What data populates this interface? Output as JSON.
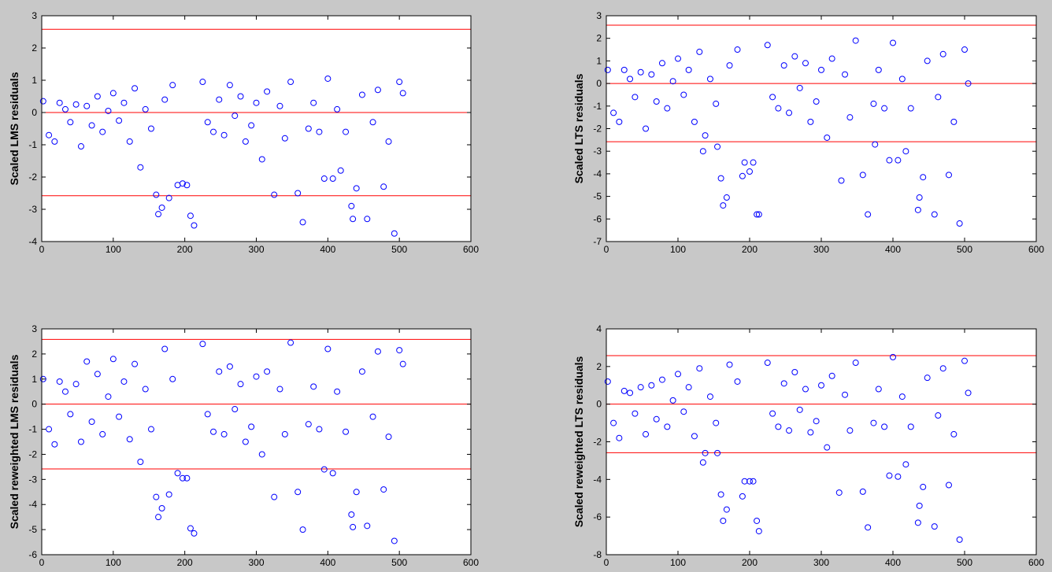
{
  "chart_data": [
    {
      "type": "scatter",
      "ylabel": "Scaled LMS residuals",
      "color": "#0000ff",
      "hlines": [
        -2.58,
        0,
        2.58
      ],
      "hline_color": "#ff0000",
      "xlim": [
        0,
        600
      ],
      "xticks": [
        0,
        100,
        200,
        300,
        400,
        500,
        600
      ],
      "ylim": [
        -4,
        3
      ],
      "yticks": [
        -4,
        -3,
        -2,
        -1,
        0,
        1,
        2,
        3
      ],
      "x": [
        2,
        10,
        18,
        25,
        33,
        40,
        48,
        55,
        63,
        70,
        78,
        85,
        93,
        100,
        108,
        115,
        123,
        130,
        138,
        145,
        153,
        172,
        183,
        225,
        232,
        240,
        248,
        255,
        263,
        270,
        278,
        285,
        293,
        300,
        308,
        315,
        333,
        340,
        348,
        373,
        380,
        388,
        400,
        413,
        425,
        448,
        463,
        470,
        485,
        500,
        505,
        160,
        163,
        168,
        178,
        190,
        197,
        203,
        208,
        213,
        325,
        358,
        365,
        395,
        407,
        418,
        433,
        435,
        440,
        455,
        478,
        493
      ],
      "values": [
        0.35,
        -0.7,
        -0.9,
        0.3,
        0.1,
        -0.3,
        0.25,
        -1.05,
        0.2,
        -0.4,
        0.5,
        -0.6,
        0.05,
        0.6,
        -0.25,
        0.3,
        -0.9,
        0.75,
        -1.7,
        0.1,
        -0.5,
        0.4,
        0.85,
        0.95,
        -0.3,
        -0.6,
        0.4,
        -0.7,
        0.85,
        -0.1,
        0.5,
        -0.9,
        -0.4,
        0.3,
        -1.45,
        0.65,
        0.2,
        -0.8,
        0.95,
        -0.5,
        0.3,
        -0.6,
        1.05,
        0.1,
        -0.6,
        0.55,
        -0.3,
        0.7,
        -0.9,
        0.95,
        0.6,
        -2.55,
        -3.15,
        -2.95,
        -2.65,
        -2.25,
        -2.2,
        -2.25,
        -3.2,
        -3.5,
        -2.55,
        -2.5,
        -3.4,
        -2.05,
        -2.05,
        -1.8,
        -2.9,
        -3.3,
        -2.35,
        -3.3,
        -2.3,
        -3.75
      ]
    },
    {
      "type": "scatter",
      "ylabel": "Scaled LTS residuals",
      "color": "#0000ff",
      "hlines": [
        -2.58,
        0,
        2.58
      ],
      "hline_color": "#ff0000",
      "xlim": [
        0,
        600
      ],
      "xticks": [
        0,
        100,
        200,
        300,
        400,
        500,
        600
      ],
      "ylim": [
        -7,
        3
      ],
      "yticks": [
        -7,
        -6,
        -5,
        -4,
        -3,
        -2,
        -1,
        0,
        1,
        2,
        3
      ],
      "x": [
        2,
        10,
        18,
        25,
        33,
        40,
        48,
        55,
        63,
        70,
        78,
        85,
        93,
        100,
        108,
        115,
        123,
        130,
        138,
        145,
        153,
        172,
        183,
        225,
        232,
        240,
        248,
        255,
        263,
        270,
        278,
        285,
        293,
        300,
        308,
        315,
        333,
        340,
        348,
        373,
        380,
        388,
        400,
        413,
        425,
        448,
        463,
        470,
        485,
        500,
        505,
        135,
        155,
        160,
        163,
        168,
        190,
        193,
        200,
        205,
        210,
        213,
        328,
        358,
        365,
        375,
        395,
        407,
        418,
        435,
        437,
        442,
        458,
        478,
        493
      ],
      "values": [
        0.6,
        -1.3,
        -1.7,
        0.6,
        0.2,
        -0.6,
        0.5,
        -2.0,
        0.4,
        -0.8,
        0.9,
        -1.1,
        0.1,
        1.1,
        -0.5,
        0.6,
        -1.7,
        1.4,
        -2.3,
        0.2,
        -0.9,
        0.8,
        1.5,
        1.7,
        -0.6,
        -1.1,
        0.8,
        -1.3,
        1.2,
        -0.2,
        0.9,
        -1.7,
        -0.8,
        0.6,
        -2.4,
        1.1,
        0.4,
        -1.5,
        1.9,
        -0.9,
        0.6,
        -1.1,
        1.8,
        0.2,
        -1.1,
        1.0,
        -0.6,
        1.3,
        -1.7,
        1.5,
        0.0,
        -3,
        -2.8,
        -4.2,
        -5.4,
        -5.05,
        -4.1,
        -3.5,
        -3.9,
        -3.5,
        -5.8,
        -5.8,
        -4.3,
        -4.05,
        -5.8,
        -2.7,
        -3.4,
        -3.4,
        -3,
        -5.6,
        -5.05,
        -4.15,
        -5.8,
        -4.05,
        -6.2
      ]
    },
    {
      "type": "scatter",
      "ylabel": "Scaled reweighted LMS residuals",
      "color": "#0000ff",
      "hlines": [
        -2.58,
        0,
        2.58
      ],
      "hline_color": "#ff0000",
      "xlim": [
        0,
        600
      ],
      "xticks": [
        0,
        100,
        200,
        300,
        400,
        500,
        600
      ],
      "ylim": [
        -6,
        3
      ],
      "yticks": [
        -6,
        -5,
        -4,
        -3,
        -2,
        -1,
        0,
        1,
        2,
        3
      ],
      "x": [
        2,
        10,
        18,
        25,
        33,
        40,
        48,
        55,
        63,
        70,
        78,
        85,
        93,
        100,
        108,
        115,
        123,
        130,
        138,
        145,
        153,
        172,
        183,
        225,
        232,
        240,
        248,
        255,
        263,
        270,
        278,
        285,
        293,
        300,
        308,
        315,
        333,
        340,
        348,
        373,
        380,
        388,
        400,
        413,
        425,
        448,
        463,
        470,
        485,
        500,
        505,
        160,
        163,
        168,
        178,
        190,
        197,
        203,
        208,
        213,
        325,
        358,
        365,
        395,
        407,
        433,
        435,
        440,
        455,
        478,
        493
      ],
      "values": [
        1.0,
        -1.0,
        -1.6,
        0.9,
        0.5,
        -0.4,
        0.8,
        -1.5,
        1.7,
        -0.7,
        1.2,
        -1.2,
        0.3,
        1.8,
        -0.5,
        0.9,
        -1.4,
        1.6,
        -2.3,
        0.6,
        -1.0,
        2.2,
        1.0,
        2.4,
        -0.4,
        -1.1,
        1.3,
        -1.2,
        1.5,
        -0.2,
        0.8,
        -1.5,
        -0.9,
        1.1,
        -2.0,
        1.3,
        0.6,
        -1.2,
        2.45,
        -0.8,
        0.7,
        -1.0,
        2.2,
        0.5,
        -1.1,
        1.3,
        -0.5,
        2.1,
        -1.3,
        2.15,
        1.6,
        -3.7,
        -4.5,
        -4.15,
        -3.6,
        -2.75,
        -2.95,
        -2.95,
        -4.95,
        -5.15,
        -3.7,
        -3.5,
        -5,
        -2.6,
        -2.75,
        -4.4,
        -4.9,
        -3.5,
        -4.85,
        -3.4,
        -5.45
      ]
    },
    {
      "type": "scatter",
      "ylabel": "Scaled reweighted LTS residuals",
      "color": "#0000ff",
      "hlines": [
        -2.58,
        0,
        2.58
      ],
      "hline_color": "#ff0000",
      "xlim": [
        0,
        600
      ],
      "xticks": [
        0,
        100,
        200,
        300,
        400,
        500,
        600
      ],
      "ylim": [
        -8,
        4
      ],
      "yticks": [
        -8,
        -6,
        -4,
        -2,
        0,
        2,
        4
      ],
      "x": [
        2,
        10,
        18,
        25,
        33,
        40,
        48,
        55,
        63,
        70,
        78,
        85,
        93,
        100,
        108,
        115,
        123,
        130,
        138,
        145,
        153,
        172,
        183,
        225,
        232,
        240,
        248,
        255,
        263,
        270,
        278,
        285,
        293,
        300,
        308,
        315,
        333,
        340,
        348,
        373,
        380,
        388,
        400,
        413,
        425,
        448,
        463,
        470,
        485,
        500,
        505,
        135,
        155,
        160,
        163,
        168,
        190,
        193,
        200,
        205,
        210,
        213,
        325,
        358,
        365,
        395,
        407,
        418,
        435,
        437,
        442,
        458,
        478,
        493
      ],
      "values": [
        1.2,
        -1.0,
        -1.8,
        0.7,
        0.6,
        -0.5,
        0.9,
        -1.6,
        1.0,
        -0.8,
        1.3,
        -1.2,
        0.2,
        1.6,
        -0.4,
        0.9,
        -1.7,
        1.9,
        -2.6,
        0.4,
        -1.0,
        2.1,
        1.2,
        2.2,
        -0.5,
        -1.2,
        1.1,
        -1.4,
        1.7,
        -0.3,
        0.8,
        -1.5,
        -0.9,
        1.0,
        -2.3,
        1.5,
        0.5,
        -1.4,
        2.2,
        -1.0,
        0.8,
        -1.2,
        2.5,
        0.4,
        -1.2,
        1.4,
        -0.6,
        1.9,
        -1.6,
        2.3,
        0.6,
        -3.1,
        -2.6,
        -4.8,
        -6.2,
        -5.6,
        -4.9,
        -4.1,
        -4.1,
        -4.1,
        -6.2,
        -6.75,
        -4.7,
        -4.65,
        -6.55,
        -3.8,
        -3.85,
        -3.2,
        -6.3,
        -5.4,
        -4.4,
        -6.5,
        -4.3,
        -7.2
      ]
    }
  ]
}
